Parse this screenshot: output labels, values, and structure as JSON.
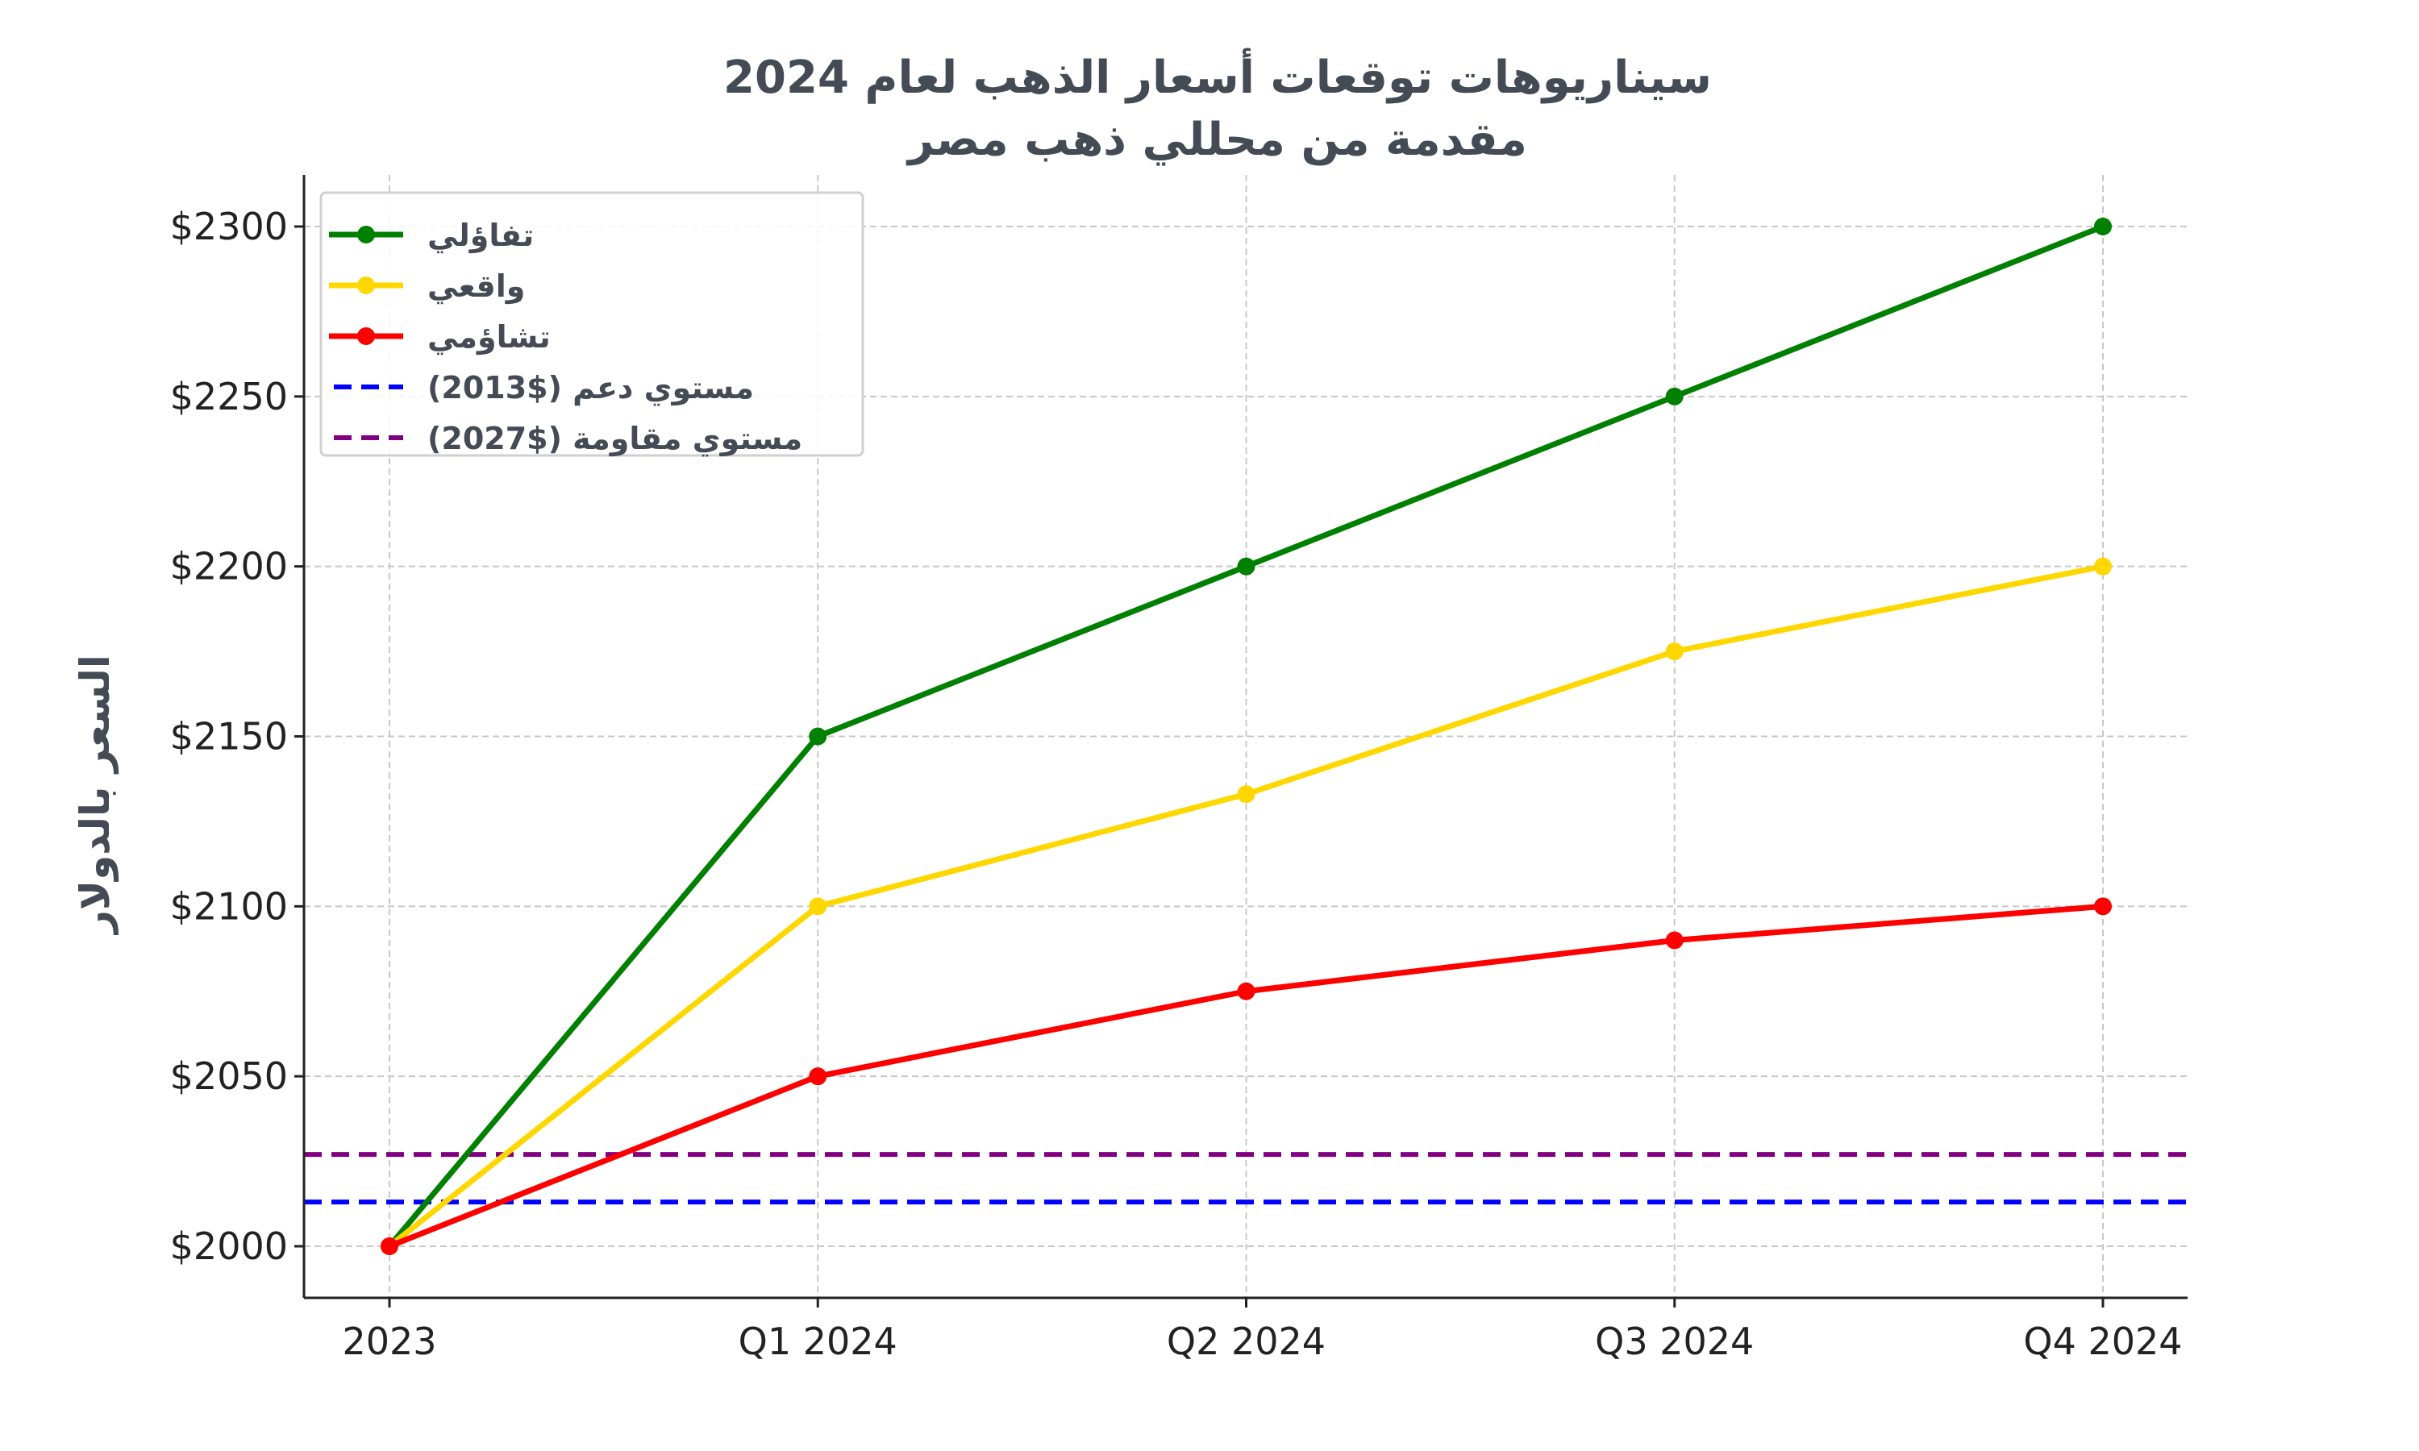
{
  "chart_data": {
    "type": "line",
    "title": "سيناريوهات توقعات أسعار الذهب لعام 2024",
    "subtitle": "مقدمة من محللي ذهب مصر",
    "xlabel": "",
    "ylabel": "السعر بالدولار",
    "categories": [
      "2023",
      "Q1 2024",
      "Q2 2024",
      "Q3 2024",
      "Q4 2024"
    ],
    "ylim": [
      1987,
      2315
    ],
    "yticks": [
      2000,
      2050,
      2100,
      2150,
      2200,
      2250,
      2300
    ],
    "ytick_labels": [
      "$2000",
      "$2050",
      "$2100",
      "$2150",
      "$2200",
      "$2250",
      "$2300"
    ],
    "grid": true,
    "legend_position": "top-left",
    "series": [
      {
        "name": "تفاؤلي",
        "color": "#008000",
        "values": [
          2000,
          2150,
          2200,
          2250,
          2300
        ]
      },
      {
        "name": "واقعي",
        "color": "#FFD700",
        "values": [
          2000,
          2100,
          2133,
          2175,
          2200
        ]
      },
      {
        "name": "تشاؤمي",
        "color": "#FF0000",
        "values": [
          2000,
          2050,
          2075,
          2090,
          2100
        ]
      }
    ],
    "hlines": [
      {
        "name": "مستوي دعم  ($2013)",
        "color": "#0000FF",
        "value": 2013
      },
      {
        "name": "مستوي مقاومة ($2027)",
        "color": "#800080",
        "value": 2027
      }
    ]
  }
}
